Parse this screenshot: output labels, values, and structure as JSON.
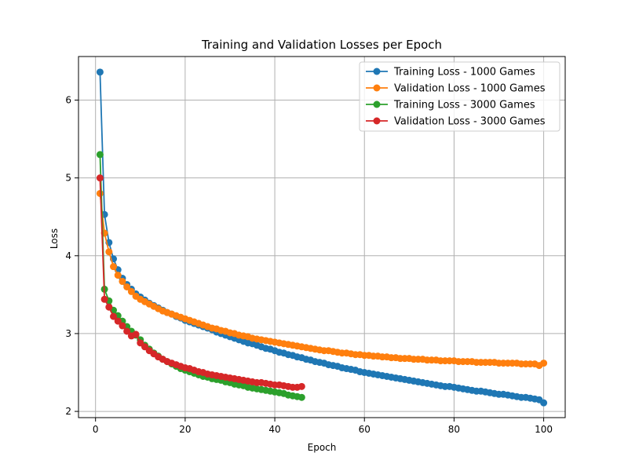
{
  "chart_data": {
    "type": "line",
    "title": "Training and Validation Losses per Epoch",
    "xlabel": "Epoch",
    "ylabel": "Loss",
    "xlim": [
      -3.8,
      104.8
    ],
    "ylim": [
      1.92,
      6.56
    ],
    "xticks": [
      0,
      20,
      40,
      60,
      80,
      100
    ],
    "yticks": [
      2,
      3,
      4,
      5,
      6
    ],
    "grid": true,
    "legend_position": "top-right",
    "series": [
      {
        "name": "Training Loss - 1000 Games",
        "color": "#1f77b4",
        "x_range": [
          1,
          100
        ],
        "values": [
          6.36,
          4.53,
          4.17,
          3.96,
          3.82,
          3.71,
          3.63,
          3.57,
          3.51,
          3.47,
          3.43,
          3.39,
          3.36,
          3.33,
          3.3,
          3.27,
          3.25,
          3.22,
          3.2,
          3.17,
          3.15,
          3.13,
          3.11,
          3.09,
          3.07,
          3.05,
          3.02,
          3,
          2.98,
          2.96,
          2.94,
          2.92,
          2.9,
          2.88,
          2.87,
          2.85,
          2.83,
          2.81,
          2.8,
          2.78,
          2.76,
          2.75,
          2.73,
          2.72,
          2.7,
          2.69,
          2.67,
          2.66,
          2.64,
          2.63,
          2.62,
          2.6,
          2.59,
          2.58,
          2.56,
          2.55,
          2.54,
          2.53,
          2.51,
          2.5,
          2.49,
          2.48,
          2.47,
          2.46,
          2.45,
          2.44,
          2.43,
          2.42,
          2.41,
          2.4,
          2.39,
          2.38,
          2.37,
          2.36,
          2.35,
          2.34,
          2.33,
          2.32,
          2.32,
          2.31,
          2.3,
          2.29,
          2.28,
          2.27,
          2.26,
          2.26,
          2.25,
          2.24,
          2.23,
          2.22,
          2.22,
          2.21,
          2.2,
          2.19,
          2.18,
          2.18,
          2.17,
          2.16,
          2.15,
          2.11
        ]
      },
      {
        "name": "Validation Loss - 1000 Games",
        "color": "#ff7f0e",
        "x_range": [
          1,
          100
        ],
        "values": [
          4.8,
          4.29,
          4.05,
          3.86,
          3.75,
          3.67,
          3.6,
          3.54,
          3.48,
          3.44,
          3.41,
          3.38,
          3.35,
          3.32,
          3.29,
          3.27,
          3.25,
          3.23,
          3.21,
          3.19,
          3.17,
          3.15,
          3.13,
          3.11,
          3.09,
          3.07,
          3.06,
          3.04,
          3.03,
          3.01,
          3,
          2.98,
          2.97,
          2.96,
          2.94,
          2.93,
          2.92,
          2.91,
          2.9,
          2.89,
          2.88,
          2.87,
          2.86,
          2.85,
          2.84,
          2.83,
          2.82,
          2.81,
          2.8,
          2.79,
          2.78,
          2.78,
          2.77,
          2.76,
          2.75,
          2.75,
          2.74,
          2.73,
          2.73,
          2.72,
          2.72,
          2.71,
          2.71,
          2.7,
          2.7,
          2.69,
          2.69,
          2.68,
          2.68,
          2.68,
          2.67,
          2.67,
          2.67,
          2.66,
          2.66,
          2.66,
          2.65,
          2.65,
          2.65,
          2.65,
          2.64,
          2.64,
          2.64,
          2.64,
          2.63,
          2.63,
          2.63,
          2.63,
          2.63,
          2.62,
          2.62,
          2.62,
          2.62,
          2.62,
          2.61,
          2.61,
          2.61,
          2.61,
          2.59,
          2.62
        ]
      },
      {
        "name": "Training Loss - 3000 Games",
        "color": "#2ca02c",
        "x_range": [
          1,
          46
        ],
        "values": [
          5.3,
          3.57,
          3.42,
          3.3,
          3.23,
          3.16,
          3.09,
          3.03,
          2.98,
          2.92,
          2.85,
          2.8,
          2.75,
          2.71,
          2.67,
          2.64,
          2.61,
          2.58,
          2.55,
          2.53,
          2.51,
          2.49,
          2.47,
          2.45,
          2.44,
          2.42,
          2.41,
          2.4,
          2.38,
          2.37,
          2.35,
          2.34,
          2.33,
          2.31,
          2.3,
          2.29,
          2.28,
          2.27,
          2.26,
          2.25,
          2.24,
          2.23,
          2.21,
          2.2,
          2.19,
          2.18
        ]
      },
      {
        "name": "Validation Loss - 3000 Games",
        "color": "#d62728",
        "x_range": [
          1,
          46
        ],
        "values": [
          5,
          3.44,
          3.34,
          3.22,
          3.16,
          3.1,
          3.03,
          2.97,
          2.99,
          2.88,
          2.83,
          2.78,
          2.74,
          2.7,
          2.67,
          2.64,
          2.62,
          2.6,
          2.58,
          2.56,
          2.55,
          2.53,
          2.51,
          2.5,
          2.48,
          2.47,
          2.46,
          2.45,
          2.44,
          2.43,
          2.42,
          2.41,
          2.4,
          2.39,
          2.38,
          2.37,
          2.37,
          2.36,
          2.35,
          2.34,
          2.34,
          2.33,
          2.32,
          2.31,
          2.31,
          2.32
        ]
      }
    ]
  }
}
